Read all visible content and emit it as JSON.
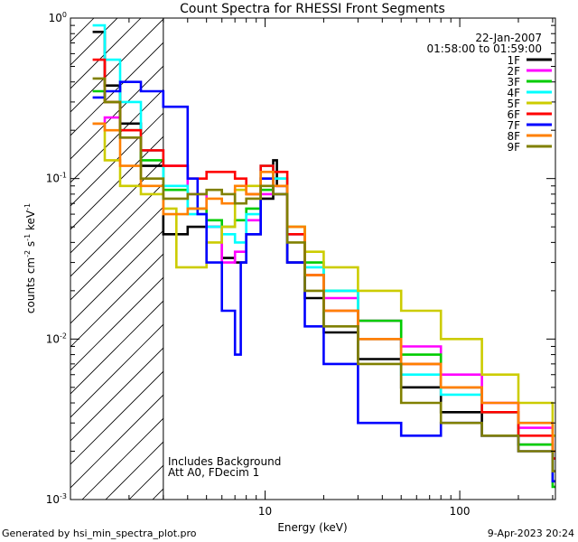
{
  "chart_data": {
    "type": "line",
    "step": true,
    "title": "Count Spectra for RHESSI Front Segments",
    "xlabel": "Energy (keV)",
    "ylabel_parts": [
      "counts cm",
      "-2",
      " s",
      "-1",
      " keV",
      "-1"
    ],
    "x_scale": "log",
    "y_scale": "log",
    "xlim": [
      1,
      310
    ],
    "ylim": [
      0.001,
      1.0
    ],
    "x_ticks": [
      {
        "v": 10,
        "label": "10"
      },
      {
        "v": 100,
        "label": "100"
      }
    ],
    "y_ticks": [
      {
        "v": 0.001,
        "base": "10",
        "exp": "-3"
      },
      {
        "v": 0.01,
        "base": "10",
        "exp": "-2"
      },
      {
        "v": 0.1,
        "base": "10",
        "exp": "-1"
      },
      {
        "v": 1,
        "base": "10",
        "exp": "0"
      }
    ],
    "date": "22-Jan-2007",
    "time_range": "01:58:00 to 01:59:00",
    "shaded_region": {
      "x_start": 1,
      "x_end": 3,
      "pattern": "diagonal hatch"
    },
    "annotations": [
      "Includes Background",
      "Att A0, FDecim 1"
    ],
    "legend_position": "top-right",
    "series": [
      {
        "name": "1F",
        "color": "#000000",
        "points": [
          [
            1.3,
            0.82
          ],
          [
            1.5,
            0.38
          ],
          [
            1.8,
            0.22
          ],
          [
            2.3,
            0.12
          ],
          [
            3.0,
            0.045
          ],
          [
            4.0,
            0.05
          ],
          [
            5.0,
            0.05
          ],
          [
            6.0,
            0.032
          ],
          [
            7.0,
            0.03
          ],
          [
            8.0,
            0.045
          ],
          [
            9.5,
            0.075
          ],
          [
            11.0,
            0.13
          ],
          [
            11.5,
            0.09
          ],
          [
            13.0,
            0.03
          ],
          [
            16.0,
            0.018
          ],
          [
            20.0,
            0.011
          ],
          [
            30.0,
            0.0075
          ],
          [
            50.0,
            0.005
          ],
          [
            80.0,
            0.0035
          ],
          [
            130.0,
            0.0025
          ],
          [
            200.0,
            0.0022
          ],
          [
            300.0,
            0.0015
          ]
        ]
      },
      {
        "name": "2F",
        "color": "#ff00ff",
        "points": [
          [
            1.3,
            0.22
          ],
          [
            1.5,
            0.24
          ],
          [
            1.8,
            0.18
          ],
          [
            2.3,
            0.15
          ],
          [
            3.0,
            0.12
          ],
          [
            4.0,
            0.08
          ],
          [
            5.0,
            0.05
          ],
          [
            6.0,
            0.03
          ],
          [
            7.0,
            0.035
          ],
          [
            8.0,
            0.055
          ],
          [
            9.5,
            0.08
          ],
          [
            11.0,
            0.09
          ],
          [
            13.0,
            0.045
          ],
          [
            16.0,
            0.025
          ],
          [
            20.0,
            0.018
          ],
          [
            30.0,
            0.013
          ],
          [
            50.0,
            0.009
          ],
          [
            80.0,
            0.006
          ],
          [
            130.0,
            0.004
          ],
          [
            200.0,
            0.0028
          ],
          [
            300.0,
            0.0018
          ]
        ]
      },
      {
        "name": "3F",
        "color": "#00cc00",
        "points": [
          [
            1.3,
            0.35
          ],
          [
            1.5,
            0.3
          ],
          [
            1.8,
            0.2
          ],
          [
            2.3,
            0.13
          ],
          [
            3.0,
            0.085
          ],
          [
            4.0,
            0.065
          ],
          [
            5.0,
            0.055
          ],
          [
            6.0,
            0.05
          ],
          [
            7.0,
            0.055
          ],
          [
            8.0,
            0.065
          ],
          [
            9.5,
            0.085
          ],
          [
            11.0,
            0.1
          ],
          [
            13.0,
            0.05
          ],
          [
            16.0,
            0.03
          ],
          [
            20.0,
            0.02
          ],
          [
            30.0,
            0.013
          ],
          [
            50.0,
            0.008
          ],
          [
            80.0,
            0.005
          ],
          [
            130.0,
            0.0035
          ],
          [
            200.0,
            0.0022
          ],
          [
            300.0,
            0.0012
          ]
        ]
      },
      {
        "name": "4F",
        "color": "#00ffff",
        "points": [
          [
            1.3,
            0.9
          ],
          [
            1.5,
            0.55
          ],
          [
            1.8,
            0.3
          ],
          [
            2.3,
            0.15
          ],
          [
            3.0,
            0.09
          ],
          [
            4.0,
            0.06
          ],
          [
            5.0,
            0.05
          ],
          [
            6.0,
            0.045
          ],
          [
            7.0,
            0.04
          ],
          [
            8.0,
            0.06
          ],
          [
            9.5,
            0.12
          ],
          [
            11.0,
            0.1
          ],
          [
            13.0,
            0.045
          ],
          [
            16.0,
            0.028
          ],
          [
            20.0,
            0.02
          ],
          [
            30.0,
            0.01
          ],
          [
            50.0,
            0.006
          ],
          [
            80.0,
            0.0045
          ],
          [
            130.0,
            0.0035
          ],
          [
            200.0,
            0.003
          ],
          [
            300.0,
            0.0025
          ]
        ]
      },
      {
        "name": "5F",
        "color": "#cccc00",
        "points": [
          [
            1.3,
            0.22
          ],
          [
            1.5,
            0.13
          ],
          [
            1.8,
            0.09
          ],
          [
            2.3,
            0.08
          ],
          [
            3.0,
            0.065
          ],
          [
            3.5,
            0.028
          ],
          [
            4.0,
            0.028
          ],
          [
            5.0,
            0.04
          ],
          [
            6.0,
            0.05
          ],
          [
            7.0,
            0.085
          ],
          [
            8.0,
            0.09
          ],
          [
            9.5,
            0.1
          ],
          [
            11.0,
            0.08
          ],
          [
            13.0,
            0.05
          ],
          [
            16.0,
            0.035
          ],
          [
            20.0,
            0.028
          ],
          [
            30.0,
            0.02
          ],
          [
            50.0,
            0.015
          ],
          [
            80.0,
            0.01
          ],
          [
            130.0,
            0.006
          ],
          [
            200.0,
            0.004
          ],
          [
            300.0,
            0.0025
          ]
        ]
      },
      {
        "name": "6F",
        "color": "#ff0000",
        "points": [
          [
            1.3,
            0.55
          ],
          [
            1.5,
            0.3
          ],
          [
            1.8,
            0.2
          ],
          [
            2.3,
            0.15
          ],
          [
            3.0,
            0.12
          ],
          [
            4.0,
            0.1
          ],
          [
            5.0,
            0.11
          ],
          [
            6.0,
            0.11
          ],
          [
            7.0,
            0.1
          ],
          [
            8.0,
            0.08
          ],
          [
            9.5,
            0.12
          ],
          [
            11.0,
            0.11
          ],
          [
            13.0,
            0.045
          ],
          [
            16.0,
            0.025
          ],
          [
            20.0,
            0.015
          ],
          [
            30.0,
            0.01
          ],
          [
            50.0,
            0.007
          ],
          [
            80.0,
            0.005
          ],
          [
            130.0,
            0.0035
          ],
          [
            200.0,
            0.0025
          ],
          [
            300.0,
            0.0018
          ]
        ]
      },
      {
        "name": "7F",
        "color": "#0000ff",
        "points": [
          [
            1.3,
            0.32
          ],
          [
            1.5,
            0.35
          ],
          [
            1.8,
            0.4
          ],
          [
            2.3,
            0.35
          ],
          [
            3.0,
            0.28
          ],
          [
            4.0,
            0.1
          ],
          [
            4.5,
            0.06
          ],
          [
            5.0,
            0.03
          ],
          [
            6.0,
            0.015
          ],
          [
            7.0,
            0.008
          ],
          [
            7.5,
            0.03
          ],
          [
            8.0,
            0.045
          ],
          [
            9.5,
            0.1
          ],
          [
            11.0,
            0.08
          ],
          [
            13.0,
            0.03
          ],
          [
            16.0,
            0.012
          ],
          [
            20.0,
            0.007
          ],
          [
            30.0,
            0.003
          ],
          [
            50.0,
            0.0025
          ],
          [
            80.0,
            0.003
          ],
          [
            130.0,
            0.0025
          ],
          [
            200.0,
            0.002
          ],
          [
            300.0,
            0.0013
          ]
        ]
      },
      {
        "name": "8F",
        "color": "#ff8000",
        "points": [
          [
            1.3,
            0.22
          ],
          [
            1.5,
            0.2
          ],
          [
            1.8,
            0.12
          ],
          [
            2.3,
            0.09
          ],
          [
            3.0,
            0.06
          ],
          [
            4.0,
            0.065
          ],
          [
            5.0,
            0.075
          ],
          [
            6.0,
            0.07
          ],
          [
            7.0,
            0.09
          ],
          [
            8.0,
            0.08
          ],
          [
            9.5,
            0.11
          ],
          [
            11.0,
            0.09
          ],
          [
            13.0,
            0.05
          ],
          [
            16.0,
            0.025
          ],
          [
            20.0,
            0.015
          ],
          [
            30.0,
            0.01
          ],
          [
            50.0,
            0.007
          ],
          [
            80.0,
            0.005
          ],
          [
            130.0,
            0.004
          ],
          [
            200.0,
            0.003
          ],
          [
            300.0,
            0.002
          ]
        ]
      },
      {
        "name": "9F",
        "color": "#808000",
        "points": [
          [
            1.3,
            0.42
          ],
          [
            1.5,
            0.3
          ],
          [
            1.8,
            0.18
          ],
          [
            2.3,
            0.1
          ],
          [
            3.0,
            0.075
          ],
          [
            4.0,
            0.08
          ],
          [
            5.0,
            0.085
          ],
          [
            6.0,
            0.08
          ],
          [
            7.0,
            0.07
          ],
          [
            8.0,
            0.075
          ],
          [
            9.5,
            0.09
          ],
          [
            11.0,
            0.08
          ],
          [
            13.0,
            0.04
          ],
          [
            16.0,
            0.02
          ],
          [
            20.0,
            0.012
          ],
          [
            30.0,
            0.007
          ],
          [
            50.0,
            0.004
          ],
          [
            80.0,
            0.003
          ],
          [
            130.0,
            0.0025
          ],
          [
            200.0,
            0.002
          ],
          [
            300.0,
            0.0015
          ]
        ]
      }
    ]
  },
  "footer": {
    "left": "Generated by hsi_min_spectra_plot.pro",
    "right": "9-Apr-2023 20:24"
  }
}
